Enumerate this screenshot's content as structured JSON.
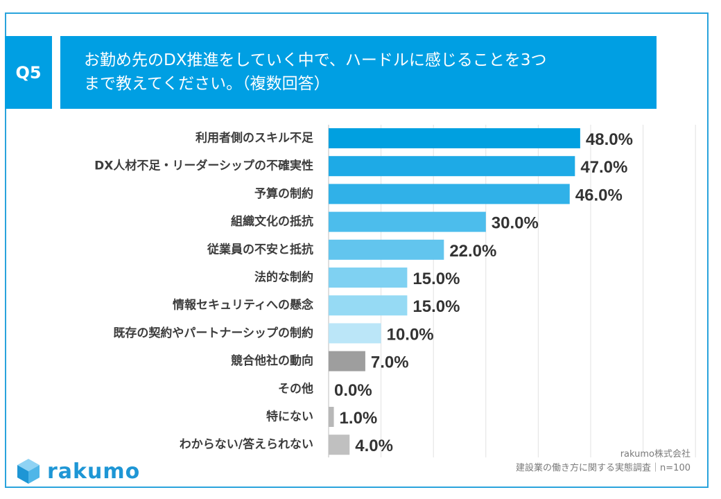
{
  "header": {
    "badge": "Q5",
    "question_line1": "お勤め先のDX推進をしていく中で、ハードルに感じることを3つ",
    "question_line2": "まで教えてください。（複数回答）"
  },
  "chart_data": {
    "type": "bar",
    "orientation": "horizontal",
    "title": "お勤め先のDX推進をしていく中で、ハードルに感じることを3つまで教えてください。（複数回答）",
    "unit": "%",
    "xlim": [
      0,
      70
    ],
    "grid": true,
    "categories": [
      "利用者側のスキル不足",
      "DX人材不足・リーダーシップの不確実性",
      "予算の制約",
      "組織文化の抵抗",
      "従業員の不安と抵抗",
      "法的な制約",
      "情報セキュリティへの懸念",
      "既存の契約やパートナーシップの制約",
      "競合他社の動向",
      "その他",
      "特にない",
      "わからない/答えられない"
    ],
    "values": [
      48.0,
      47.0,
      46.0,
      30.0,
      22.0,
      15.0,
      15.0,
      10.0,
      7.0,
      0.0,
      1.0,
      4.0
    ],
    "value_labels": [
      "48.0%",
      "47.0%",
      "46.0%",
      "30.0%",
      "22.0%",
      "15.0%",
      "15.0%",
      "10.0%",
      "7.0%",
      "0.0%",
      "1.0%",
      "4.0%"
    ],
    "colors": [
      "#00a0e0",
      "#1eaae6",
      "#30b1e8",
      "#4cbdec",
      "#62c5ee",
      "#7fd1f2",
      "#96daf4",
      "#bbe6f8",
      "#9e9e9e",
      "#b0b0b0",
      "#b8b8b8",
      "#c0c0c0"
    ]
  },
  "footer": {
    "logo_text": "rakumo",
    "source_company": "rakumo株式会社",
    "source_survey": "建設業の働き方に関する実態調査｜n=100"
  }
}
